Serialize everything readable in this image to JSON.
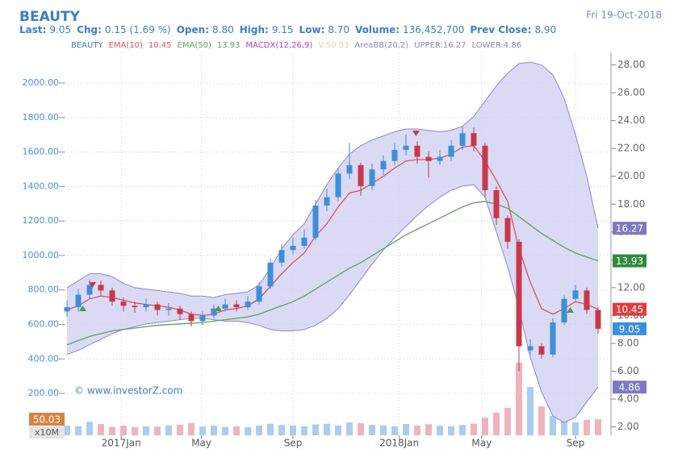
{
  "chart_data": {
    "type": "candlestick",
    "symbol": "BEAUTY",
    "date": "Fri 19-Oct-2018",
    "quote": [
      {
        "label": "Last:",
        "value": "9.05"
      },
      {
        "label": "Chg:",
        "value": "0.15 (1.69 %)"
      },
      {
        "label": "Open:",
        "value": "8.80"
      },
      {
        "label": "High:",
        "value": "9.15"
      },
      {
        "label": "Low:",
        "value": "8.70"
      },
      {
        "label": "Volume:",
        "value": "136,452,700"
      },
      {
        "label": "Prev Close:",
        "value": "8.90"
      }
    ],
    "macd_legend": "MACDX(12,26,9)",
    "volume_legend": "V:50.03",
    "watermark": "© www.investorZ.com",
    "volume_unit": "x10M",
    "x": [
      0,
      1,
      2,
      3,
      4,
      5,
      6,
      7,
      8,
      9,
      10,
      11,
      12,
      13,
      14,
      15,
      16,
      17,
      18,
      19,
      20,
      21,
      22,
      23,
      24,
      25,
      26,
      27,
      28,
      29,
      30,
      31,
      32,
      33,
      34,
      35,
      36,
      37,
      38,
      39,
      40,
      41,
      42,
      43,
      44,
      45,
      46,
      47
    ],
    "xlim": [
      -0.5,
      48
    ],
    "xticks": [
      {
        "value": 4.8,
        "label": "2017Jan"
      },
      {
        "value": 11.9,
        "label": "May"
      },
      {
        "value": 20,
        "label": "Sep"
      },
      {
        "value": 29.4,
        "label": "2018Jan"
      },
      {
        "value": 36.7,
        "label": "May"
      },
      {
        "value": 45,
        "label": "Sep"
      }
    ],
    "open": [
      10.3,
      10.6,
      11.5,
      12.2,
      11.8,
      11.0,
      10.7,
      10.6,
      10.8,
      10.4,
      10.5,
      10.1,
      9.6,
      10.0,
      10.5,
      10.8,
      10.6,
      11.0,
      12.1,
      13.8,
      14.7,
      15.0,
      15.6,
      17.9,
      18.5,
      20.2,
      20.8,
      19.3,
      20.5,
      21.1,
      21.9,
      22.2,
      21.4,
      21.1,
      21.4,
      22.2,
      23.1,
      22.2,
      19.0,
      17.0,
      15.3,
      7.5,
      7.8,
      7.2,
      9.5,
      11.2,
      11.8,
      10.4
    ],
    "high": [
      11.1,
      11.9,
      12.6,
      12.5,
      12.0,
      11.3,
      11.0,
      11.2,
      11.0,
      10.9,
      10.7,
      10.3,
      10.3,
      10.8,
      11.2,
      11.1,
      11.4,
      12.4,
      14.1,
      15.1,
      15.6,
      16.2,
      18.3,
      19.1,
      20.6,
      22.4,
      21.0,
      20.9,
      21.5,
      22.4,
      23.0,
      22.5,
      21.8,
      21.9,
      22.6,
      23.6,
      23.5,
      22.4,
      19.3,
      17.2,
      15.5,
      8.3,
      8.0,
      9.8,
      11.5,
      12.2,
      12.0,
      10.6
    ],
    "low": [
      9.9,
      10.3,
      11.2,
      11.4,
      10.7,
      10.3,
      10.2,
      10.3,
      10.0,
      10.0,
      9.7,
      9.2,
      9.3,
      9.8,
      10.3,
      10.3,
      10.4,
      10.8,
      11.9,
      13.5,
      14.4,
      14.8,
      15.4,
      17.5,
      18.2,
      19.8,
      18.6,
      19.0,
      20.1,
      20.8,
      21.5,
      20.9,
      19.9,
      20.8,
      21.1,
      21.9,
      21.8,
      18.5,
      16.5,
      14.8,
      6.0,
      7.2,
      6.9,
      7.0,
      9.3,
      11.0,
      10.1,
      8.7
    ],
    "close": [
      10.6,
      11.5,
      12.2,
      11.8,
      11.0,
      10.7,
      10.6,
      10.8,
      10.4,
      10.5,
      10.1,
      9.6,
      10.0,
      10.5,
      10.8,
      10.6,
      11.0,
      12.1,
      13.8,
      14.7,
      15.0,
      15.6,
      17.9,
      18.5,
      20.2,
      20.8,
      19.3,
      20.5,
      21.1,
      21.9,
      22.2,
      21.4,
      21.1,
      21.4,
      22.2,
      23.1,
      22.2,
      19.0,
      17.0,
      15.3,
      7.8,
      7.8,
      7.2,
      9.5,
      11.2,
      11.8,
      10.4,
      9.05
    ],
    "volume": [
      30,
      28,
      42,
      35,
      26,
      30,
      25,
      28,
      27,
      30,
      33,
      38,
      27,
      30,
      26,
      28,
      25,
      30,
      36,
      32,
      30,
      28,
      34,
      36,
      30,
      40,
      38,
      32,
      30,
      28,
      35,
      30,
      34,
      30,
      28,
      32,
      36,
      55,
      70,
      85,
      225,
      150,
      90,
      60,
      45,
      40,
      48,
      50.03
    ],
    "vlim": [
      0,
      1187
    ],
    "series": [
      {
        "name": "EMA(10)",
        "color": "#d9535b",
        "values": [
          10.4,
          10.7,
          11.2,
          11.4,
          11.3,
          11.1,
          10.9,
          10.8,
          10.7,
          10.6,
          10.4,
          10.1,
          10.0,
          10.1,
          10.4,
          10.5,
          10.7,
          11.2,
          12.1,
          13.0,
          13.8,
          14.5,
          15.7,
          16.6,
          17.8,
          18.8,
          19.0,
          19.5,
          20.0,
          20.6,
          21.1,
          21.2,
          21.2,
          21.3,
          21.6,
          22.1,
          22.2,
          21.1,
          19.7,
          18.2,
          14.8,
          12.4,
          10.5,
          10.1,
          10.5,
          11.0,
          10.8,
          10.45
        ]
      },
      {
        "name": "EMA(50)",
        "color": "#5aa55a",
        "values": [
          7.9,
          8.2,
          8.5,
          8.7,
          8.9,
          9.0,
          9.1,
          9.2,
          9.3,
          9.35,
          9.4,
          9.45,
          9.5,
          9.6,
          9.7,
          9.8,
          9.9,
          10.1,
          10.4,
          10.7,
          11.0,
          11.4,
          11.9,
          12.4,
          12.9,
          13.4,
          13.8,
          14.3,
          14.8,
          15.3,
          15.8,
          16.2,
          16.6,
          17.0,
          17.4,
          17.8,
          18.1,
          18.2,
          18.0,
          17.7,
          17.1,
          16.5,
          15.9,
          15.4,
          14.9,
          14.5,
          14.2,
          13.93
        ]
      }
    ],
    "band": {
      "name": "AreaBB(20,2)",
      "upper_legend": "UPPER:16.27",
      "lower_legend": "LOWER:4.86",
      "color": "#8c86cc",
      "fill": "#cfcdf0",
      "upper": [
        12.0,
        12.5,
        13.0,
        13.0,
        12.8,
        12.3,
        12.0,
        11.9,
        11.8,
        11.7,
        11.6,
        11.4,
        11.4,
        11.3,
        11.5,
        11.6,
        11.7,
        12.2,
        13.4,
        14.8,
        15.8,
        16.6,
        18.0,
        19.4,
        20.6,
        21.6,
        22.2,
        22.6,
        22.9,
        23.2,
        23.4,
        23.4,
        23.3,
        23.2,
        23.3,
        23.6,
        24.3,
        25.4,
        26.5,
        27.4,
        28.1,
        28.2,
        28.0,
        27.3,
        25.6,
        23.0,
        20.0,
        16.27
      ],
      "lower": [
        7.2,
        7.5,
        7.9,
        8.3,
        8.7,
        9.0,
        9.2,
        9.4,
        9.5,
        9.6,
        9.7,
        9.8,
        9.8,
        9.7,
        9.6,
        9.6,
        9.5,
        9.3,
        9.0,
        8.9,
        8.9,
        9.0,
        9.3,
        9.8,
        10.5,
        11.5,
        12.6,
        13.7,
        14.7,
        15.6,
        16.4,
        17.2,
        17.9,
        18.5,
        19.0,
        19.3,
        19.4,
        18.5,
        16.0,
        13.5,
        10.5,
        7.0,
        4.5,
        2.8,
        2.3,
        2.7,
        3.8,
        4.86
      ]
    },
    "ylim": [
      -43,
      2178
    ],
    "yticks": [
      {
        "value": 200,
        "label": "200.00"
      },
      {
        "value": 400,
        "label": "400.00"
      },
      {
        "value": 600,
        "label": "600.00"
      },
      {
        "value": 800,
        "label": "800.00"
      },
      {
        "value": 1000,
        "label": "1000.00"
      },
      {
        "value": 1200,
        "label": "1200.00"
      },
      {
        "value": 1400,
        "label": "1400.00"
      },
      {
        "value": 1600,
        "label": "1600.00"
      },
      {
        "value": 1800,
        "label": "1800.00"
      },
      {
        "value": 2000,
        "label": "2000.00"
      }
    ],
    "y2lim": [
      1.4,
      28.9
    ],
    "y2ticks": [
      {
        "value": 2,
        "label": "2.00"
      },
      {
        "value": 4,
        "label": "4.00"
      },
      {
        "value": 6,
        "label": "6.00"
      },
      {
        "value": 8,
        "label": "8.00"
      },
      {
        "value": 10,
        "label": "10.00"
      },
      {
        "value": 12,
        "label": "12.00"
      },
      {
        "value": 14,
        "label": "14.00"
      },
      {
        "value": 16,
        "label": "16.00"
      },
      {
        "value": 18,
        "label": "18.00"
      },
      {
        "value": 20,
        "label": "20.00"
      },
      {
        "value": 22,
        "label": "22.00"
      },
      {
        "value": 24,
        "label": "24.00"
      },
      {
        "value": 26,
        "label": "26.00"
      },
      {
        "value": 28,
        "label": "28.00"
      }
    ],
    "up_color": "#3d8fd9",
    "down_color": "#c8384a",
    "grid": true
  }
}
